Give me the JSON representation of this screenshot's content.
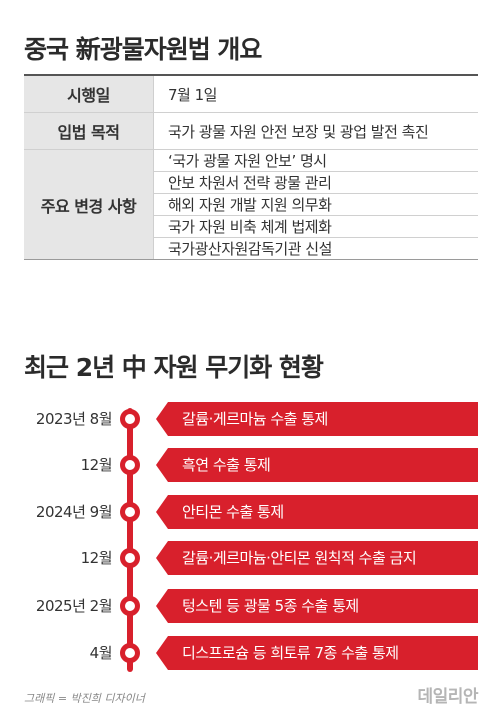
{
  "title1": "중국 新광물자원법 개요",
  "table": {
    "row1": {
      "header": "시행일",
      "value": "7월 1일"
    },
    "row2": {
      "header": "입법 목적",
      "value": "국가 광물 자원 안전 보장 및 광업 발전 촉진"
    },
    "row3": {
      "header": "주요 변경 사항",
      "values": [
        "‘국가 광물 자원 안보’ 명시",
        "안보 차원서 전략 광물 관리",
        "해외 자원 개발 지원 의무화",
        "국가 자원 비축 체계 법제화",
        "국가광산자원감독기관 신설"
      ]
    }
  },
  "title2": "최근 2년 中 자원 무기화 현황",
  "timeline": [
    {
      "date": "2023년 8월",
      "text": "갈륨·게르마늄 수출 통제"
    },
    {
      "date": "12월",
      "text": "흑연 수출 통제"
    },
    {
      "date": "2024년 9월",
      "text": "안티몬 수출 통제"
    },
    {
      "date": "12월",
      "text": "갈륨·게르마늄·안티몬 원칙적 수출 금지"
    },
    {
      "date": "2025년 2월",
      "text": "텅스텐 등 광물 5종 수출 통제"
    },
    {
      "date": "4월",
      "text": "디스프로슘 등 희토류 7종 수출 통제"
    }
  ],
  "credit": "그래픽 = 박진희 디자이너",
  "logo": "데일리안",
  "colors": {
    "accent": "#d8202c",
    "header_bg": "#e6e6e6"
  }
}
